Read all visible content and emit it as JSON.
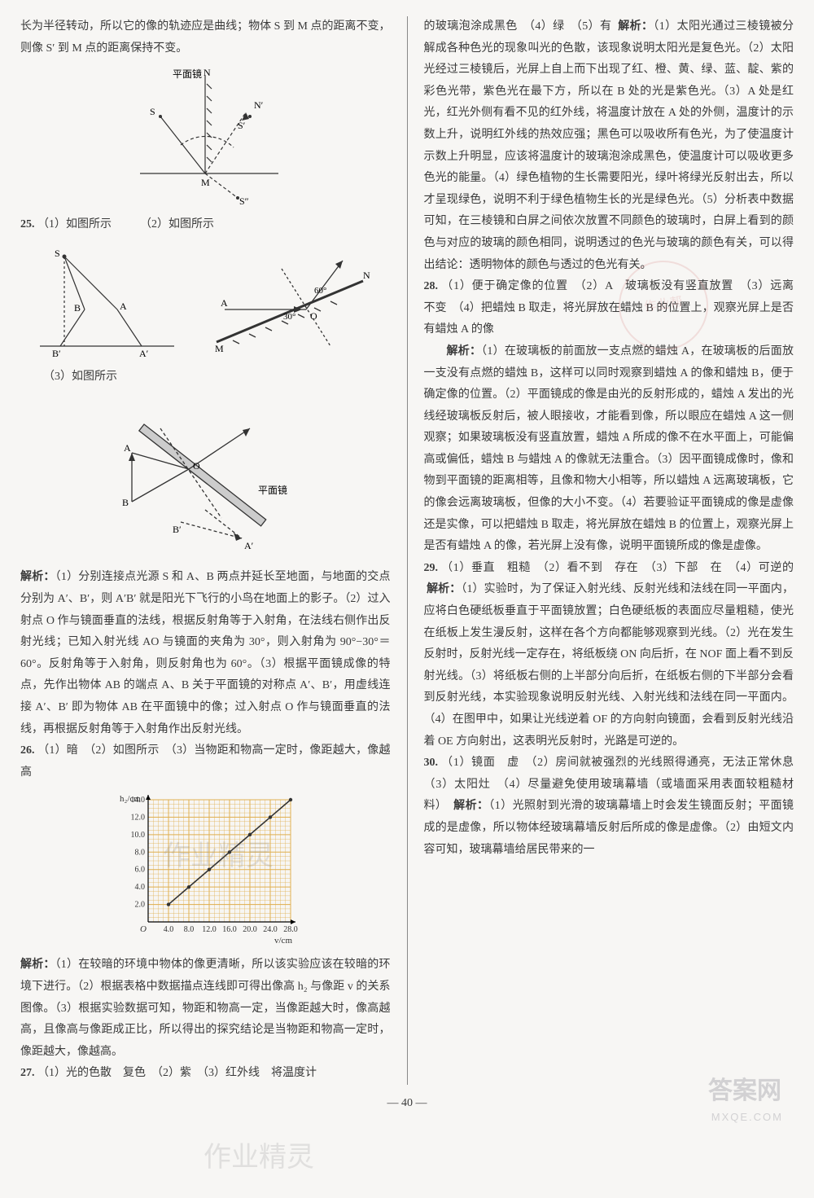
{
  "left": {
    "intro": "长为半径转动，所以它的像的轨迹应是曲线；物体 S 到 M 点的距离不变，则像 S′ 到 M 点的距离保持不变。",
    "fig1": {
      "labels": {
        "N": "N",
        "Np": "N′",
        "S": "S",
        "Sp": "S′",
        "Spp": "S″",
        "M": "M",
        "mirror": "平面镜"
      }
    },
    "q25": {
      "num": "25.",
      "a": "（1）如图所示",
      "b": "（2）如图所示",
      "c": "（3）如图所示",
      "fig2": {
        "S": "S",
        "A": "A",
        "B": "B",
        "Ap": "A′",
        "Bp": "B′"
      },
      "fig3": {
        "A": "A",
        "M": "M",
        "N": "N",
        "O": "O",
        "ang30": "30°",
        "ang60": "60°"
      },
      "fig4": {
        "A": "A",
        "B": "B",
        "Ap": "A′",
        "Bp": "B′",
        "O": "O",
        "mirror": "平面镜"
      },
      "analysis_label": "解析：",
      "analysis": "（1）分别连接点光源 S 和 A、B 两点并延长至地面，与地面的交点分别为 A′、B′，则 A′B′ 就是阳光下飞行的小鸟在地面上的影子。（2）过入射点 O 作与镜面垂直的法线，根据反射角等于入射角，在法线右侧作出反射光线；已知入射光线 AO 与镜面的夹角为 30°，则入射角为 90°−30°＝60°。反射角等于入射角，则反射角也为 60°。（3）根据平面镜成像的特点，先作出物体 AB 的端点 A、B 关于平面镜的对称点 A′、B′，用虚线连接 A′、B′ 即为物体 AB 在平面镜中的像；过入射点 O 作与镜面垂直的法线，再根据反射角等于入射角作出反射光线。"
    },
    "q26": {
      "num": "26.",
      "line1": "（1）暗　（2）如图所示　（3）当物距和物高一定时，像距越大，像越高",
      "chart": {
        "type": "line",
        "xlabel": "v/cm",
        "ylabel": "h₂/cm",
        "xlim": [
          0,
          28
        ],
        "ylim": [
          0,
          14
        ],
        "xticks": [
          "4.0",
          "8.0",
          "12.0",
          "16.0",
          "20.0",
          "24.0",
          "28.0"
        ],
        "yticks": [
          "2.0",
          "4.0",
          "6.0",
          "8.0",
          "10.0",
          "12.0",
          "14.0"
        ],
        "points": [
          [
            4,
            2
          ],
          [
            8,
            4
          ],
          [
            12,
            6
          ],
          [
            16,
            8
          ],
          [
            20,
            10
          ],
          [
            24,
            12
          ],
          [
            28,
            14
          ]
        ],
        "grid_color": "#e0b050",
        "line_color": "#333",
        "bg": "#ffffff"
      },
      "analysis_label": "解析：",
      "analysis": "（1）在较暗的环境中物体的像更清晰，所以该实验应该在较暗的环境下进行。（2）根据表格中数据描点连线即可得出像高 h₂ 与像距 v 的关系图像。（3）根据实验数据可知，物距和物高一定，当像距越大时，像高越高，且像高与像距成正比，所以得出的探究结论是当物距和物高一定时，像距越大，像越高。"
    },
    "q27": {
      "num": "27.",
      "line": "（1）光的色散　复色　（2）紫　（3）红外线　将温度计"
    }
  },
  "right": {
    "cont27": "的玻璃泡涂成黑色　（4）绿　（5）有",
    "label27": "解析：",
    "ana27": "（1）太阳光通过三棱镜被分解成各种色光的现象叫光的色散，该现象说明太阳光是复色光。（2）太阳光经过三棱镜后，光屏上自上而下出现了红、橙、黄、绿、蓝、靛、紫的彩色光带，紫色光在最下方，所以在 B 处的光是紫色光。（3）A 处是红光，红光外侧有看不见的红外线，将温度计放在 A 处的外侧，温度计的示数上升，说明红外线的热效应强；黑色可以吸收所有色光，为了使温度计示数上升明显，应该将温度计的玻璃泡涂成黑色，使温度计可以吸收更多色光的能量。（4）绿色植物的生长需要阳光，绿叶将绿光反射出去，所以才呈现绿色，说明不利于绿色植物生长的光是绿色光。（5）分析表中数据可知，在三棱镜和白屏之间依次放置不同颜色的玻璃时，白屏上看到的颜色与对应的玻璃的颜色相同，说明透过的色光与玻璃的颜色有关，可以得出结论：透明物体的颜色与透过的色光有关。",
    "q28": {
      "num": "28.",
      "line": "（1）便于确定像的位置　（2）A　玻璃板没有竖直放置　（3）远离　不变　（4）把蜡烛 B 取走，将光屏放在蜡烛 B 的位置上，观察光屏上是否有蜡烛 A 的像",
      "analysis_label": "解析：",
      "analysis": "（1）在玻璃板的前面放一支点燃的蜡烛 A，在玻璃板的后面放一支没有点燃的蜡烛 B，这样可以同时观察到蜡烛 A 的像和蜡烛 B，便于确定像的位置。（2）平面镜成的像是由光的反射形成的，蜡烛 A 发出的光线经玻璃板反射后，被人眼接收，才能看到像，所以眼应在蜡烛 A 这一侧观察；如果玻璃板没有竖直放置，蜡烛 A 所成的像不在水平面上，可能偏高或偏低，蜡烛 B 与蜡烛 A 的像就无法重合。（3）因平面镜成像时，像和物到平面镜的距离相等，且像和物大小相等，所以蜡烛 A 远离玻璃板，它的像会远离玻璃板，但像的大小不变。（4）若要验证平面镜成的像是虚像还是实像，可以把蜡烛 B 取走，将光屏放在蜡烛 B 的位置上，观察光屏上是否有蜡烛 A 的像，若光屏上没有像，说明平面镜所成的像是虚像。"
    },
    "q29": {
      "num": "29.",
      "line": "（1）垂直　粗糙　（2）看不到　存在　（3）下部　在　（4）可逆的",
      "analysis_label": "解析：",
      "analysis": "（1）实验时，为了保证入射光线、反射光线和法线在同一平面内，应将白色硬纸板垂直于平面镜放置；白色硬纸板的表面应尽量粗糙，使光在纸板上发生漫反射，这样在各个方向都能够观察到光线。（2）光在发生反射时，反射光线一定存在，将纸板绕 ON 向后折，在 NOF 面上看不到反射光线。（3）将纸板右侧的上半部分向后折，在纸板右侧的下半部分会看到反射光线，本实验现象说明反射光线、入射光线和法线在同一平面内。（4）在图甲中，如果让光线逆着 OF 的方向射向镜面，会看到反射光线沿着 OE 方向射出，这表明光反射时，光路是可逆的。"
    },
    "q30": {
      "num": "30.",
      "line": "（1）镜面　虚　（2）房间就被强烈的光线照得通亮，无法正常休息　（3）太阳灶　（4）尽量避免使用玻璃幕墙（或墙面采用表面较粗糙材料）",
      "analysis_label": "解析：",
      "analysis": "（1）光照射到光滑的玻璃幕墙上时会发生镜面反射；平面镜成的是虚像，所以物体经玻璃幕墙反射后所成的像是虚像。（2）由短文内容可知，玻璃幕墙给居民带来的一"
    }
  },
  "footer": "— 40 —",
  "watermarks": {
    "w1": "作业精灵",
    "w2": "作业精灵",
    "w3": "答案网",
    "w4": "MXQE.COM",
    "stamp": "作业帮"
  }
}
